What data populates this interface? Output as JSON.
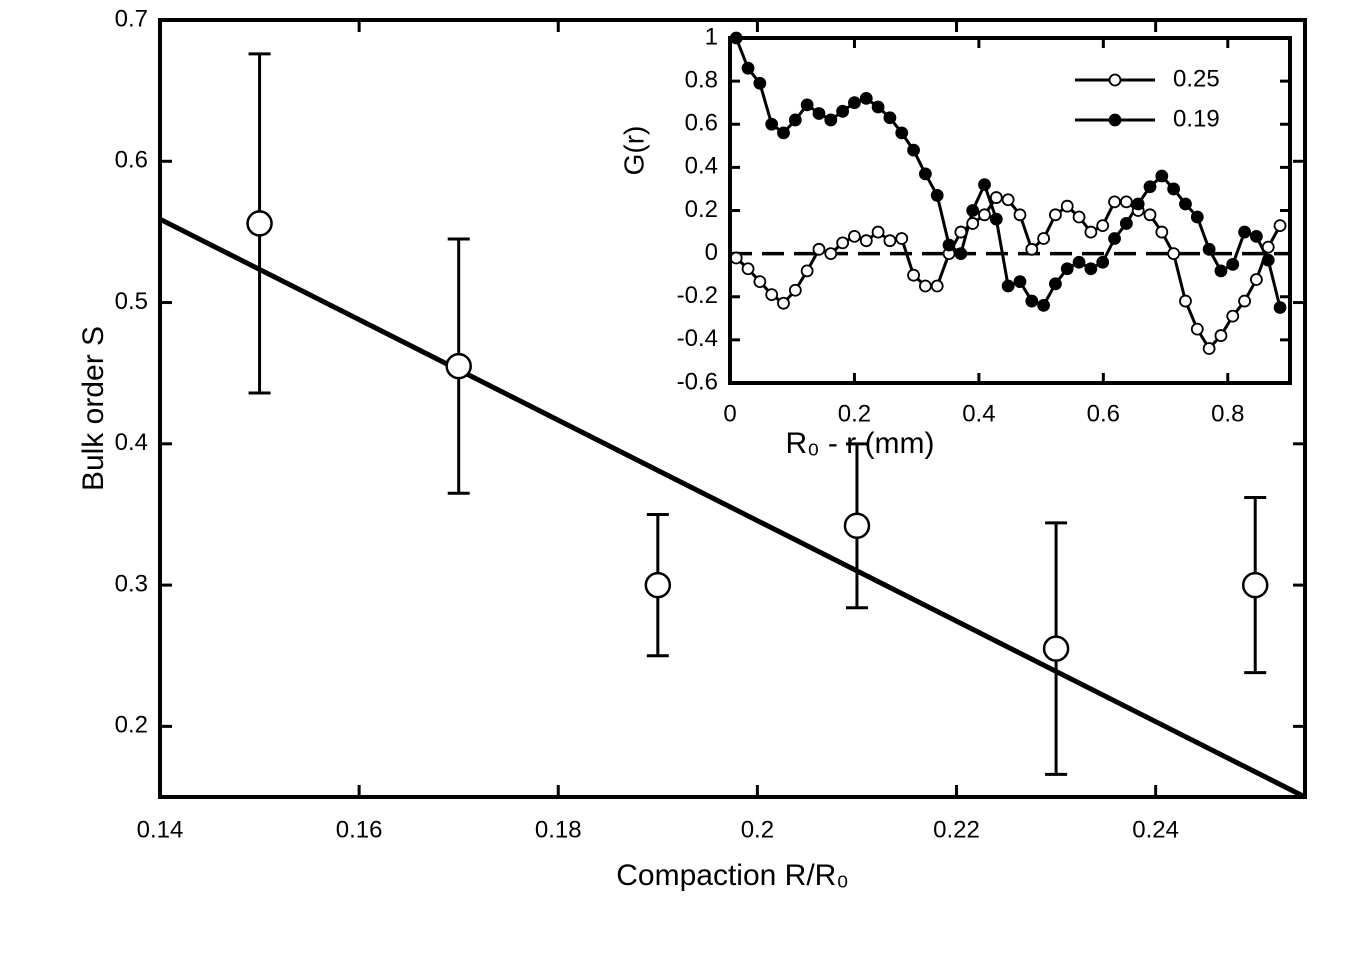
{
  "chart_data": [
    {
      "type": "scatter",
      "xlabel": "Compaction R/R₀",
      "ylabel": "Bulk order S",
      "xlim": [
        0.14,
        0.255
      ],
      "ylim": [
        0.15,
        0.7
      ],
      "xticks": [
        0.14,
        0.16,
        0.18,
        0.2,
        0.22,
        0.24
      ],
      "yticks": [
        0.2,
        0.3,
        0.4,
        0.5,
        0.6,
        0.7
      ],
      "series": [
        {
          "color": "#000000",
          "marker": "open",
          "x": [
            0.15,
            0.17,
            0.19,
            0.21,
            0.23,
            0.25
          ],
          "values": [
            0.556,
            0.455,
            0.3,
            0.342,
            0.255,
            0.3
          ],
          "errors": [
            0.12,
            0.09,
            0.05,
            0.058,
            0.089,
            0.062
          ]
        }
      ],
      "fit_line": {
        "color": "#000000",
        "x": [
          0.14,
          0.255
        ],
        "values": [
          0.559,
          0.15
        ]
      }
    },
    {
      "type": "line",
      "xlabel": "R₀ - r (mm)",
      "ylabel": "G(r)",
      "xlim": [
        0,
        0.9
      ],
      "ylim": [
        -0.6,
        1
      ],
      "xticks": [
        0,
        0.2,
        0.4,
        0.6,
        0.8
      ],
      "yticks": [
        -0.6,
        -0.4,
        -0.2,
        0,
        0.2,
        0.4,
        0.6,
        0.8,
        1
      ],
      "hline": 0,
      "legend": "upper right",
      "x": [
        0.01,
        0.029,
        0.048,
        0.067,
        0.086,
        0.105,
        0.124,
        0.143,
        0.162,
        0.181,
        0.2,
        0.219,
        0.238,
        0.257,
        0.276,
        0.295,
        0.314,
        0.333,
        0.352,
        0.371,
        0.39,
        0.409,
        0.428,
        0.447,
        0.466,
        0.485,
        0.504,
        0.523,
        0.542,
        0.561,
        0.58,
        0.599,
        0.618,
        0.637,
        0.656,
        0.675,
        0.694,
        0.713,
        0.732,
        0.751,
        0.77,
        0.789,
        0.808,
        0.827,
        0.846,
        0.865,
        0.884
      ],
      "series": [
        {
          "name": "0.25",
          "color": "#000000",
          "marker": "open",
          "values": [
            -0.02,
            -0.07,
            -0.13,
            -0.19,
            -0.23,
            -0.17,
            -0.08,
            0.02,
            0.0,
            0.05,
            0.08,
            0.06,
            0.1,
            0.06,
            0.07,
            -0.1,
            -0.15,
            -0.15,
            0.0,
            0.1,
            0.14,
            0.18,
            0.26,
            0.25,
            0.18,
            0.02,
            0.07,
            0.18,
            0.22,
            0.17,
            0.1,
            0.13,
            0.24,
            0.24,
            0.2,
            0.18,
            0.1,
            0.0,
            -0.22,
            -0.35,
            -0.44,
            -0.38,
            -0.29,
            -0.22,
            -0.12,
            0.03,
            0.13
          ]
        },
        {
          "name": "0.19",
          "color": "#000000",
          "marker": "filled",
          "values": [
            1.0,
            0.86,
            0.79,
            0.6,
            0.56,
            0.62,
            0.69,
            0.65,
            0.62,
            0.66,
            0.7,
            0.72,
            0.68,
            0.63,
            0.56,
            0.48,
            0.37,
            0.27,
            0.04,
            0.0,
            0.2,
            0.32,
            0.16,
            -0.15,
            -0.13,
            -0.22,
            -0.24,
            -0.14,
            -0.07,
            -0.04,
            -0.07,
            -0.04,
            0.07,
            0.14,
            0.23,
            0.31,
            0.36,
            0.3,
            0.23,
            0.17,
            0.02,
            -0.08,
            -0.05,
            0.1,
            0.08,
            -0.03,
            -0.25
          ]
        }
      ]
    }
  ]
}
